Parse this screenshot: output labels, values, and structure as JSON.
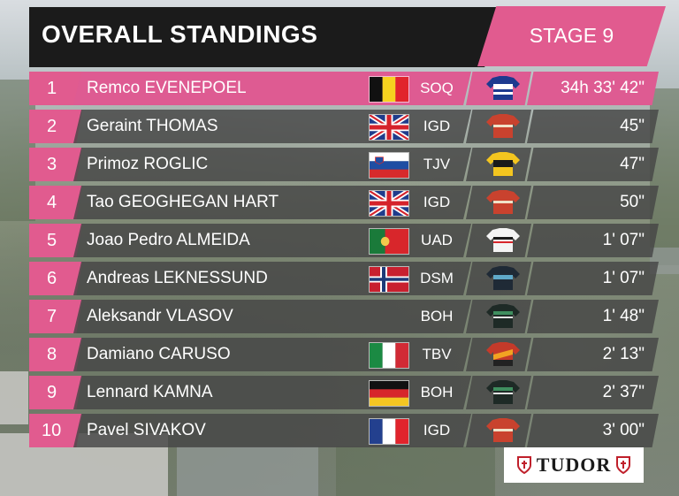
{
  "header": {
    "title": "OVERALL STANDINGS",
    "stage": "STAGE 9"
  },
  "colors": {
    "accent_pink": "#e15b8f",
    "header_black": "#1b1b1b",
    "row_grey": "#464646"
  },
  "standings": [
    {
      "rank": "1",
      "name": "Remco EVENEPOEL",
      "flag": "belgium-flag",
      "team": "SOQ",
      "jersey": "soudal-quickstep-jersey-icon",
      "time": "34h 33' 42\""
    },
    {
      "rank": "2",
      "name": "Geraint THOMAS",
      "flag": "uk-flag",
      "team": "IGD",
      "jersey": "ineos-jersey-icon",
      "time": "45\""
    },
    {
      "rank": "3",
      "name": "Primoz ROGLIC",
      "flag": "slovenia-flag",
      "team": "TJV",
      "jersey": "jumbo-visma-jersey-icon",
      "time": "47\""
    },
    {
      "rank": "4",
      "name": "Tao GEOGHEGAN HART",
      "flag": "uk-flag",
      "team": "IGD",
      "jersey": "ineos-jersey-icon",
      "time": "50\""
    },
    {
      "rank": "5",
      "name": "Joao Pedro ALMEIDA",
      "flag": "portugal-flag",
      "team": "UAD",
      "jersey": "uae-jersey-icon",
      "time": "1' 07\""
    },
    {
      "rank": "6",
      "name": "Andreas LEKNESSUND",
      "flag": "norway-flag",
      "team": "DSM",
      "jersey": "dsm-jersey-icon",
      "time": "1' 07\""
    },
    {
      "rank": "7",
      "name": "Aleksandr VLASOV",
      "flag": "",
      "team": "BOH",
      "jersey": "bora-jersey-icon",
      "time": "1' 48\""
    },
    {
      "rank": "8",
      "name": "Damiano CARUSO",
      "flag": "italy-flag",
      "team": "TBV",
      "jersey": "bahrain-jersey-icon",
      "time": "2' 13\""
    },
    {
      "rank": "9",
      "name": "Lennard KAMNA",
      "flag": "germany-flag",
      "team": "BOH",
      "jersey": "bora-jersey-icon",
      "time": "2' 37\""
    },
    {
      "rank": "10",
      "name": "Pavel SIVAKOV",
      "flag": "france-flag",
      "team": "IGD",
      "jersey": "ineos-jersey-icon",
      "time": "3' 00\""
    }
  ],
  "sponsor": {
    "name": "TUDOR",
    "icon": "tudor-shield-icon"
  }
}
